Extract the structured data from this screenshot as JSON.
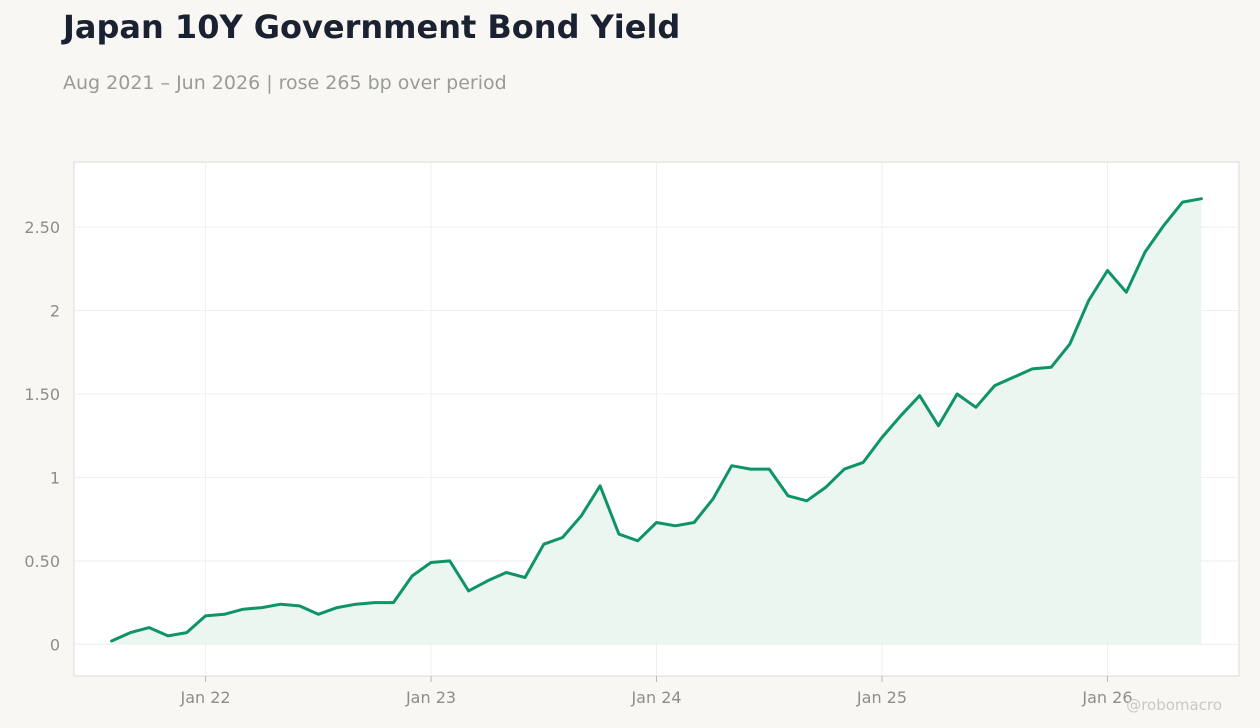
{
  "title": "Japan 10Y Government Bond Yield",
  "subtitle": "Aug 2021 – Jun 2026 | rose 265 bp over period",
  "watermark": "@robomacro",
  "colors": {
    "line": "#0e9466",
    "fill": "#e8f4ef",
    "background": "#f8f7f4",
    "panel": "#ffffff",
    "grid": "#efefec"
  },
  "chart_data": {
    "type": "area",
    "title": "Japan 10Y Government Bond Yield",
    "xlabel": "",
    "ylabel": "",
    "ylim": [
      -0.19,
      2.89
    ],
    "xlim": [
      "2021-06",
      "2026-08"
    ],
    "grid": true,
    "legend": "none",
    "y_ticks": [
      0,
      0.5,
      1,
      1.5,
      2,
      2.5
    ],
    "y_tick_labels": [
      "0",
      "0.50",
      "1",
      "1.50",
      "2",
      "2.50"
    ],
    "x_ticks": [
      "2022-01",
      "2023-01",
      "2024-01",
      "2025-01",
      "2026-01"
    ],
    "x_tick_labels": [
      "Jan 22",
      "Jan 23",
      "Jan 24",
      "Jan 25",
      "Jan 26"
    ],
    "x": [
      "2021-08",
      "2021-09",
      "2021-10",
      "2021-11",
      "2021-12",
      "2022-01",
      "2022-02",
      "2022-03",
      "2022-04",
      "2022-05",
      "2022-06",
      "2022-07",
      "2022-08",
      "2022-09",
      "2022-10",
      "2022-11",
      "2022-12",
      "2023-01",
      "2023-02",
      "2023-03",
      "2023-04",
      "2023-05",
      "2023-06",
      "2023-07",
      "2023-08",
      "2023-09",
      "2023-10",
      "2023-11",
      "2023-12",
      "2024-01",
      "2024-02",
      "2024-03",
      "2024-04",
      "2024-05",
      "2024-06",
      "2024-07",
      "2024-08",
      "2024-09",
      "2024-10",
      "2024-11",
      "2024-12",
      "2025-01",
      "2025-02",
      "2025-03",
      "2025-04",
      "2025-05",
      "2025-06",
      "2025-07",
      "2025-08",
      "2025-09",
      "2025-10",
      "2025-11",
      "2025-12",
      "2026-01",
      "2026-02",
      "2026-03",
      "2026-04",
      "2026-05",
      "2026-06"
    ],
    "values": [
      0.02,
      0.07,
      0.1,
      0.05,
      0.07,
      0.17,
      0.18,
      0.21,
      0.22,
      0.24,
      0.23,
      0.18,
      0.22,
      0.24,
      0.25,
      0.25,
      0.41,
      0.49,
      0.5,
      0.32,
      0.38,
      0.43,
      0.4,
      0.6,
      0.64,
      0.77,
      0.95,
      0.66,
      0.62,
      0.73,
      0.71,
      0.73,
      0.87,
      1.07,
      1.05,
      1.05,
      0.89,
      0.86,
      0.94,
      1.05,
      1.09,
      1.24,
      1.37,
      1.49,
      1.31,
      1.5,
      1.42,
      1.55,
      1.6,
      1.65,
      1.66,
      1.8,
      2.06,
      2.24,
      2.11,
      2.35,
      2.51,
      2.65,
      2.67
    ]
  }
}
